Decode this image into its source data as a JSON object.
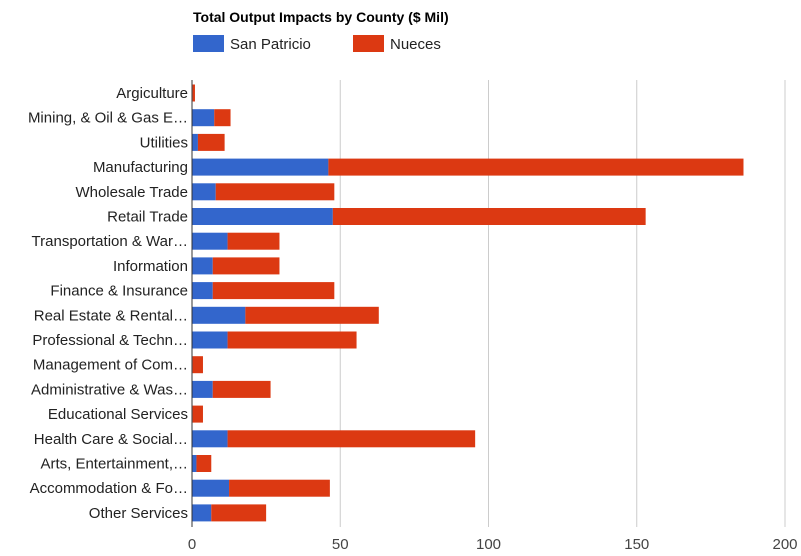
{
  "chart_data": {
    "type": "bar",
    "orientation": "horizontal",
    "stacked": true,
    "title": "Total Output Impacts by County ($ Mil)",
    "xlabel": "",
    "ylabel": "",
    "xlim": [
      0,
      200
    ],
    "xticks": [
      0,
      50,
      100,
      150,
      200
    ],
    "grid": true,
    "legend_position": "top",
    "categories": [
      "Argiculture",
      "Mining, & Oil & Gas E…",
      "Utilities",
      "Manufacturing",
      "Wholesale Trade",
      "Retail Trade",
      "Transportation & War…",
      "Information",
      "Finance & Insurance",
      "Real Estate & Rental…",
      "Professional & Techn…",
      "Management of Com…",
      "Administrative & Was…",
      "Educational Services",
      "Health Care & Social…",
      "Arts, Entertainment,…",
      "Accommodation & Fo…",
      "Other Services"
    ],
    "series": [
      {
        "name": "San Patricio",
        "color": "#3366cc",
        "values": [
          0.2,
          7.5,
          2,
          46,
          8,
          47.5,
          12,
          7,
          7,
          18,
          12,
          0.2,
          7,
          0.2,
          12,
          1.5,
          12.5,
          6.5
        ]
      },
      {
        "name": "Nueces",
        "color": "#dc3912",
        "values": [
          0.8,
          5.5,
          9,
          140,
          40,
          105.5,
          17.5,
          22.5,
          41,
          45,
          43.5,
          3.5,
          19.5,
          3.5,
          83.5,
          5,
          34,
          18.5
        ]
      }
    ]
  }
}
